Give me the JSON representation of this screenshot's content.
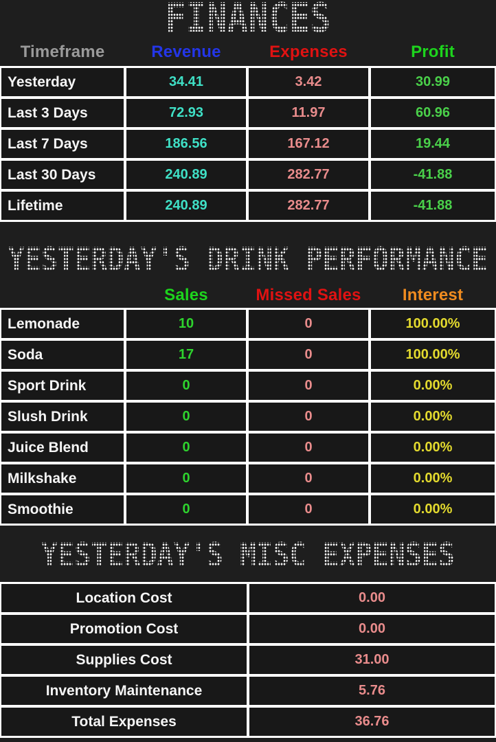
{
  "colors": {
    "background": "#1e1e1e",
    "cell_background": "#181818",
    "grid_lines": "#ffffff",
    "revenue_header": "#2436e8",
    "expenses_header": "#e01212",
    "profit_header": "#1dd41d",
    "timeframe_header": "#9a9a9a",
    "sales_header": "#1dd41d",
    "missed_sales_header": "#e01212",
    "interest_header": "#f08c20",
    "revenue_value": "#3fe0c6",
    "expense_value": "#e98c8c",
    "profit_value": "#4ad04a",
    "sales_value": "#2ed32e",
    "interest_value": "#e3da2e"
  },
  "finances": {
    "title": "FINANCES",
    "headers": [
      "Timeframe",
      "Revenue",
      "Expenses",
      "Profit"
    ],
    "rows": [
      {
        "label": "Yesterday",
        "revenue": "34.41",
        "expenses": "3.42",
        "profit": "30.99"
      },
      {
        "label": "Last 3 Days",
        "revenue": "72.93",
        "expenses": "11.97",
        "profit": "60.96"
      },
      {
        "label": "Last 7 Days",
        "revenue": "186.56",
        "expenses": "167.12",
        "profit": "19.44"
      },
      {
        "label": "Last 30 Days",
        "revenue": "240.89",
        "expenses": "282.77",
        "profit": "-41.88"
      },
      {
        "label": "Lifetime",
        "revenue": "240.89",
        "expenses": "282.77",
        "profit": "-41.88"
      }
    ]
  },
  "drink_performance": {
    "title": "YESTERDAY'S DRINK PERFORMANCE",
    "headers": [
      "Sales",
      "Missed Sales",
      "Interest"
    ],
    "rows": [
      {
        "label": "Lemonade",
        "sales": "10",
        "missed": "0",
        "interest": "100.00%"
      },
      {
        "label": "Soda",
        "sales": "17",
        "missed": "0",
        "interest": "100.00%"
      },
      {
        "label": "Sport Drink",
        "sales": "0",
        "missed": "0",
        "interest": "0.00%"
      },
      {
        "label": "Slush Drink",
        "sales": "0",
        "missed": "0",
        "interest": "0.00%"
      },
      {
        "label": "Juice Blend",
        "sales": "0",
        "missed": "0",
        "interest": "0.00%"
      },
      {
        "label": "Milkshake",
        "sales": "0",
        "missed": "0",
        "interest": "0.00%"
      },
      {
        "label": "Smoothie",
        "sales": "0",
        "missed": "0",
        "interest": "0.00%"
      }
    ]
  },
  "misc_expenses": {
    "title": "YESTERDAY'S MISC EXPENSES",
    "rows": [
      {
        "label": "Location Cost",
        "value": "0.00"
      },
      {
        "label": "Promotion Cost",
        "value": "0.00"
      },
      {
        "label": "Supplies Cost",
        "value": "31.00"
      },
      {
        "label": "Inventory Maintenance",
        "value": "5.76"
      },
      {
        "label": "Total Expenses",
        "value": "36.76"
      }
    ]
  }
}
